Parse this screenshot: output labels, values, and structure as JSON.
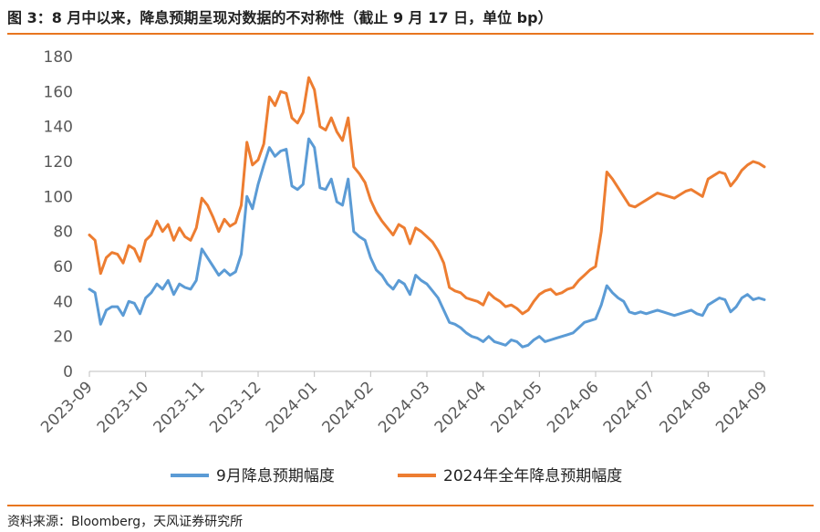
{
  "header": {
    "title": "图 3：8 月中以来，降息预期呈现对数据的不对称性（截止 9 月 17 日，单位 bp）"
  },
  "footer": {
    "source": "资料来源：Bloomberg，天风证券研究所"
  },
  "colors": {
    "series_sep": "#5b9bd5",
    "series_full_year": "#ed7d31",
    "accent_rule": "#e8761f",
    "axis": "#bfbfbf",
    "tick_text": "#595959"
  },
  "chart_data": {
    "type": "line",
    "title": "",
    "xlabel": "",
    "ylabel": "",
    "ylim": [
      0,
      180
    ],
    "yticks": [
      0,
      20,
      40,
      60,
      80,
      100,
      120,
      140,
      160,
      180
    ],
    "x_ticks": [
      "2023-09",
      "2023-10",
      "2023-11",
      "2023-12",
      "2024-01",
      "2024-02",
      "2024-03",
      "2024-04",
      "2024-05",
      "2024-06",
      "2024-07",
      "2024-08",
      "2024-09"
    ],
    "grid": false,
    "legend_position": "bottom",
    "series": [
      {
        "name": "9月降息预期幅度",
        "color": "#5b9bd5",
        "points": [
          [
            0.0,
            47
          ],
          [
            0.1,
            45
          ],
          [
            0.2,
            27
          ],
          [
            0.3,
            35
          ],
          [
            0.4,
            37
          ],
          [
            0.5,
            37
          ],
          [
            0.6,
            32
          ],
          [
            0.7,
            40
          ],
          [
            0.8,
            39
          ],
          [
            0.9,
            33
          ],
          [
            1.0,
            42
          ],
          [
            1.1,
            45
          ],
          [
            1.2,
            50
          ],
          [
            1.3,
            47
          ],
          [
            1.4,
            52
          ],
          [
            1.5,
            44
          ],
          [
            1.6,
            50
          ],
          [
            1.7,
            48
          ],
          [
            1.8,
            47
          ],
          [
            1.9,
            52
          ],
          [
            2.0,
            70
          ],
          [
            2.1,
            65
          ],
          [
            2.2,
            60
          ],
          [
            2.3,
            55
          ],
          [
            2.4,
            58
          ],
          [
            2.5,
            55
          ],
          [
            2.6,
            57
          ],
          [
            2.7,
            67
          ],
          [
            2.8,
            100
          ],
          [
            2.9,
            93
          ],
          [
            3.0,
            107
          ],
          [
            3.1,
            118
          ],
          [
            3.2,
            128
          ],
          [
            3.3,
            123
          ],
          [
            3.4,
            126
          ],
          [
            3.5,
            127
          ],
          [
            3.6,
            106
          ],
          [
            3.7,
            104
          ],
          [
            3.8,
            107
          ],
          [
            3.9,
            133
          ],
          [
            4.0,
            128
          ],
          [
            4.1,
            105
          ],
          [
            4.2,
            104
          ],
          [
            4.3,
            110
          ],
          [
            4.4,
            97
          ],
          [
            4.5,
            95
          ],
          [
            4.6,
            110
          ],
          [
            4.7,
            80
          ],
          [
            4.8,
            77
          ],
          [
            4.9,
            75
          ],
          [
            5.0,
            65
          ],
          [
            5.1,
            58
          ],
          [
            5.2,
            55
          ],
          [
            5.3,
            50
          ],
          [
            5.4,
            47
          ],
          [
            5.5,
            52
          ],
          [
            5.6,
            50
          ],
          [
            5.7,
            44
          ],
          [
            5.8,
            55
          ],
          [
            5.9,
            52
          ],
          [
            6.0,
            50
          ],
          [
            6.1,
            46
          ],
          [
            6.2,
            42
          ],
          [
            6.3,
            35
          ],
          [
            6.4,
            28
          ],
          [
            6.5,
            27
          ],
          [
            6.6,
            25
          ],
          [
            6.7,
            22
          ],
          [
            6.8,
            20
          ],
          [
            6.9,
            19
          ],
          [
            7.0,
            17
          ],
          [
            7.1,
            20
          ],
          [
            7.2,
            17
          ],
          [
            7.3,
            16
          ],
          [
            7.4,
            15
          ],
          [
            7.5,
            18
          ],
          [
            7.6,
            17
          ],
          [
            7.7,
            14
          ],
          [
            7.8,
            15
          ],
          [
            7.9,
            18
          ],
          [
            8.0,
            20
          ],
          [
            8.1,
            17
          ],
          [
            8.2,
            18
          ],
          [
            8.3,
            19
          ],
          [
            8.4,
            20
          ],
          [
            8.5,
            21
          ],
          [
            8.6,
            22
          ],
          [
            8.7,
            25
          ],
          [
            8.8,
            28
          ],
          [
            8.9,
            29
          ],
          [
            9.0,
            30
          ],
          [
            9.1,
            38
          ],
          [
            9.2,
            49
          ],
          [
            9.3,
            45
          ],
          [
            9.4,
            42
          ],
          [
            9.5,
            40
          ],
          [
            9.6,
            34
          ],
          [
            9.7,
            33
          ],
          [
            9.8,
            34
          ],
          [
            9.9,
            33
          ],
          [
            10.0,
            34
          ],
          [
            10.1,
            35
          ],
          [
            10.2,
            34
          ],
          [
            10.3,
            33
          ],
          [
            10.4,
            32
          ],
          [
            10.5,
            33
          ],
          [
            10.6,
            34
          ],
          [
            10.7,
            35
          ],
          [
            10.8,
            33
          ],
          [
            10.9,
            32
          ],
          [
            11.0,
            38
          ],
          [
            11.1,
            40
          ],
          [
            11.2,
            42
          ],
          [
            11.3,
            41
          ],
          [
            11.4,
            34
          ],
          [
            11.5,
            37
          ],
          [
            11.6,
            42
          ],
          [
            11.7,
            44
          ],
          [
            11.8,
            41
          ],
          [
            11.9,
            42
          ],
          [
            12.0,
            41
          ]
        ]
      },
      {
        "name": "2024年全年降息预期幅度",
        "color": "#ed7d31",
        "points": [
          [
            0.0,
            78
          ],
          [
            0.1,
            75
          ],
          [
            0.2,
            56
          ],
          [
            0.3,
            65
          ],
          [
            0.4,
            68
          ],
          [
            0.5,
            67
          ],
          [
            0.6,
            62
          ],
          [
            0.7,
            72
          ],
          [
            0.8,
            70
          ],
          [
            0.9,
            63
          ],
          [
            1.0,
            75
          ],
          [
            1.1,
            78
          ],
          [
            1.2,
            86
          ],
          [
            1.3,
            80
          ],
          [
            1.4,
            84
          ],
          [
            1.5,
            75
          ],
          [
            1.6,
            82
          ],
          [
            1.7,
            77
          ],
          [
            1.8,
            75
          ],
          [
            1.9,
            82
          ],
          [
            2.0,
            99
          ],
          [
            2.1,
            95
          ],
          [
            2.2,
            88
          ],
          [
            2.3,
            80
          ],
          [
            2.4,
            87
          ],
          [
            2.5,
            83
          ],
          [
            2.6,
            85
          ],
          [
            2.7,
            95
          ],
          [
            2.8,
            131
          ],
          [
            2.9,
            118
          ],
          [
            3.0,
            121
          ],
          [
            3.1,
            130
          ],
          [
            3.2,
            157
          ],
          [
            3.3,
            152
          ],
          [
            3.4,
            160
          ],
          [
            3.5,
            159
          ],
          [
            3.6,
            145
          ],
          [
            3.7,
            142
          ],
          [
            3.8,
            148
          ],
          [
            3.9,
            168
          ],
          [
            4.0,
            161
          ],
          [
            4.1,
            140
          ],
          [
            4.2,
            138
          ],
          [
            4.3,
            145
          ],
          [
            4.4,
            137
          ],
          [
            4.5,
            132
          ],
          [
            4.6,
            145
          ],
          [
            4.7,
            117
          ],
          [
            4.8,
            113
          ],
          [
            4.9,
            108
          ],
          [
            5.0,
            98
          ],
          [
            5.1,
            91
          ],
          [
            5.2,
            86
          ],
          [
            5.3,
            82
          ],
          [
            5.4,
            78
          ],
          [
            5.5,
            84
          ],
          [
            5.6,
            82
          ],
          [
            5.7,
            73
          ],
          [
            5.8,
            82
          ],
          [
            5.9,
            80
          ],
          [
            6.0,
            77
          ],
          [
            6.1,
            74
          ],
          [
            6.2,
            69
          ],
          [
            6.3,
            62
          ],
          [
            6.4,
            48
          ],
          [
            6.5,
            46
          ],
          [
            6.6,
            45
          ],
          [
            6.7,
            42
          ],
          [
            6.8,
            41
          ],
          [
            6.9,
            40
          ],
          [
            7.0,
            38
          ],
          [
            7.1,
            45
          ],
          [
            7.2,
            42
          ],
          [
            7.3,
            40
          ],
          [
            7.4,
            37
          ],
          [
            7.5,
            38
          ],
          [
            7.6,
            36
          ],
          [
            7.7,
            33
          ],
          [
            7.8,
            35
          ],
          [
            7.9,
            40
          ],
          [
            8.0,
            44
          ],
          [
            8.1,
            46
          ],
          [
            8.2,
            47
          ],
          [
            8.3,
            44
          ],
          [
            8.4,
            45
          ],
          [
            8.5,
            47
          ],
          [
            8.6,
            48
          ],
          [
            8.7,
            52
          ],
          [
            8.8,
            55
          ],
          [
            8.9,
            58
          ],
          [
            9.0,
            60
          ],
          [
            9.1,
            80
          ],
          [
            9.2,
            114
          ],
          [
            9.3,
            110
          ],
          [
            9.4,
            105
          ],
          [
            9.5,
            100
          ],
          [
            9.6,
            95
          ],
          [
            9.7,
            94
          ],
          [
            9.8,
            96
          ],
          [
            9.9,
            98
          ],
          [
            10.0,
            100
          ],
          [
            10.1,
            102
          ],
          [
            10.2,
            101
          ],
          [
            10.3,
            100
          ],
          [
            10.4,
            99
          ],
          [
            10.5,
            101
          ],
          [
            10.6,
            103
          ],
          [
            10.7,
            104
          ],
          [
            10.8,
            102
          ],
          [
            10.9,
            100
          ],
          [
            11.0,
            110
          ],
          [
            11.1,
            112
          ],
          [
            11.2,
            114
          ],
          [
            11.3,
            113
          ],
          [
            11.4,
            106
          ],
          [
            11.5,
            110
          ],
          [
            11.6,
            115
          ],
          [
            11.7,
            118
          ],
          [
            11.8,
            120
          ],
          [
            11.9,
            119
          ],
          [
            12.0,
            117
          ]
        ]
      }
    ]
  }
}
